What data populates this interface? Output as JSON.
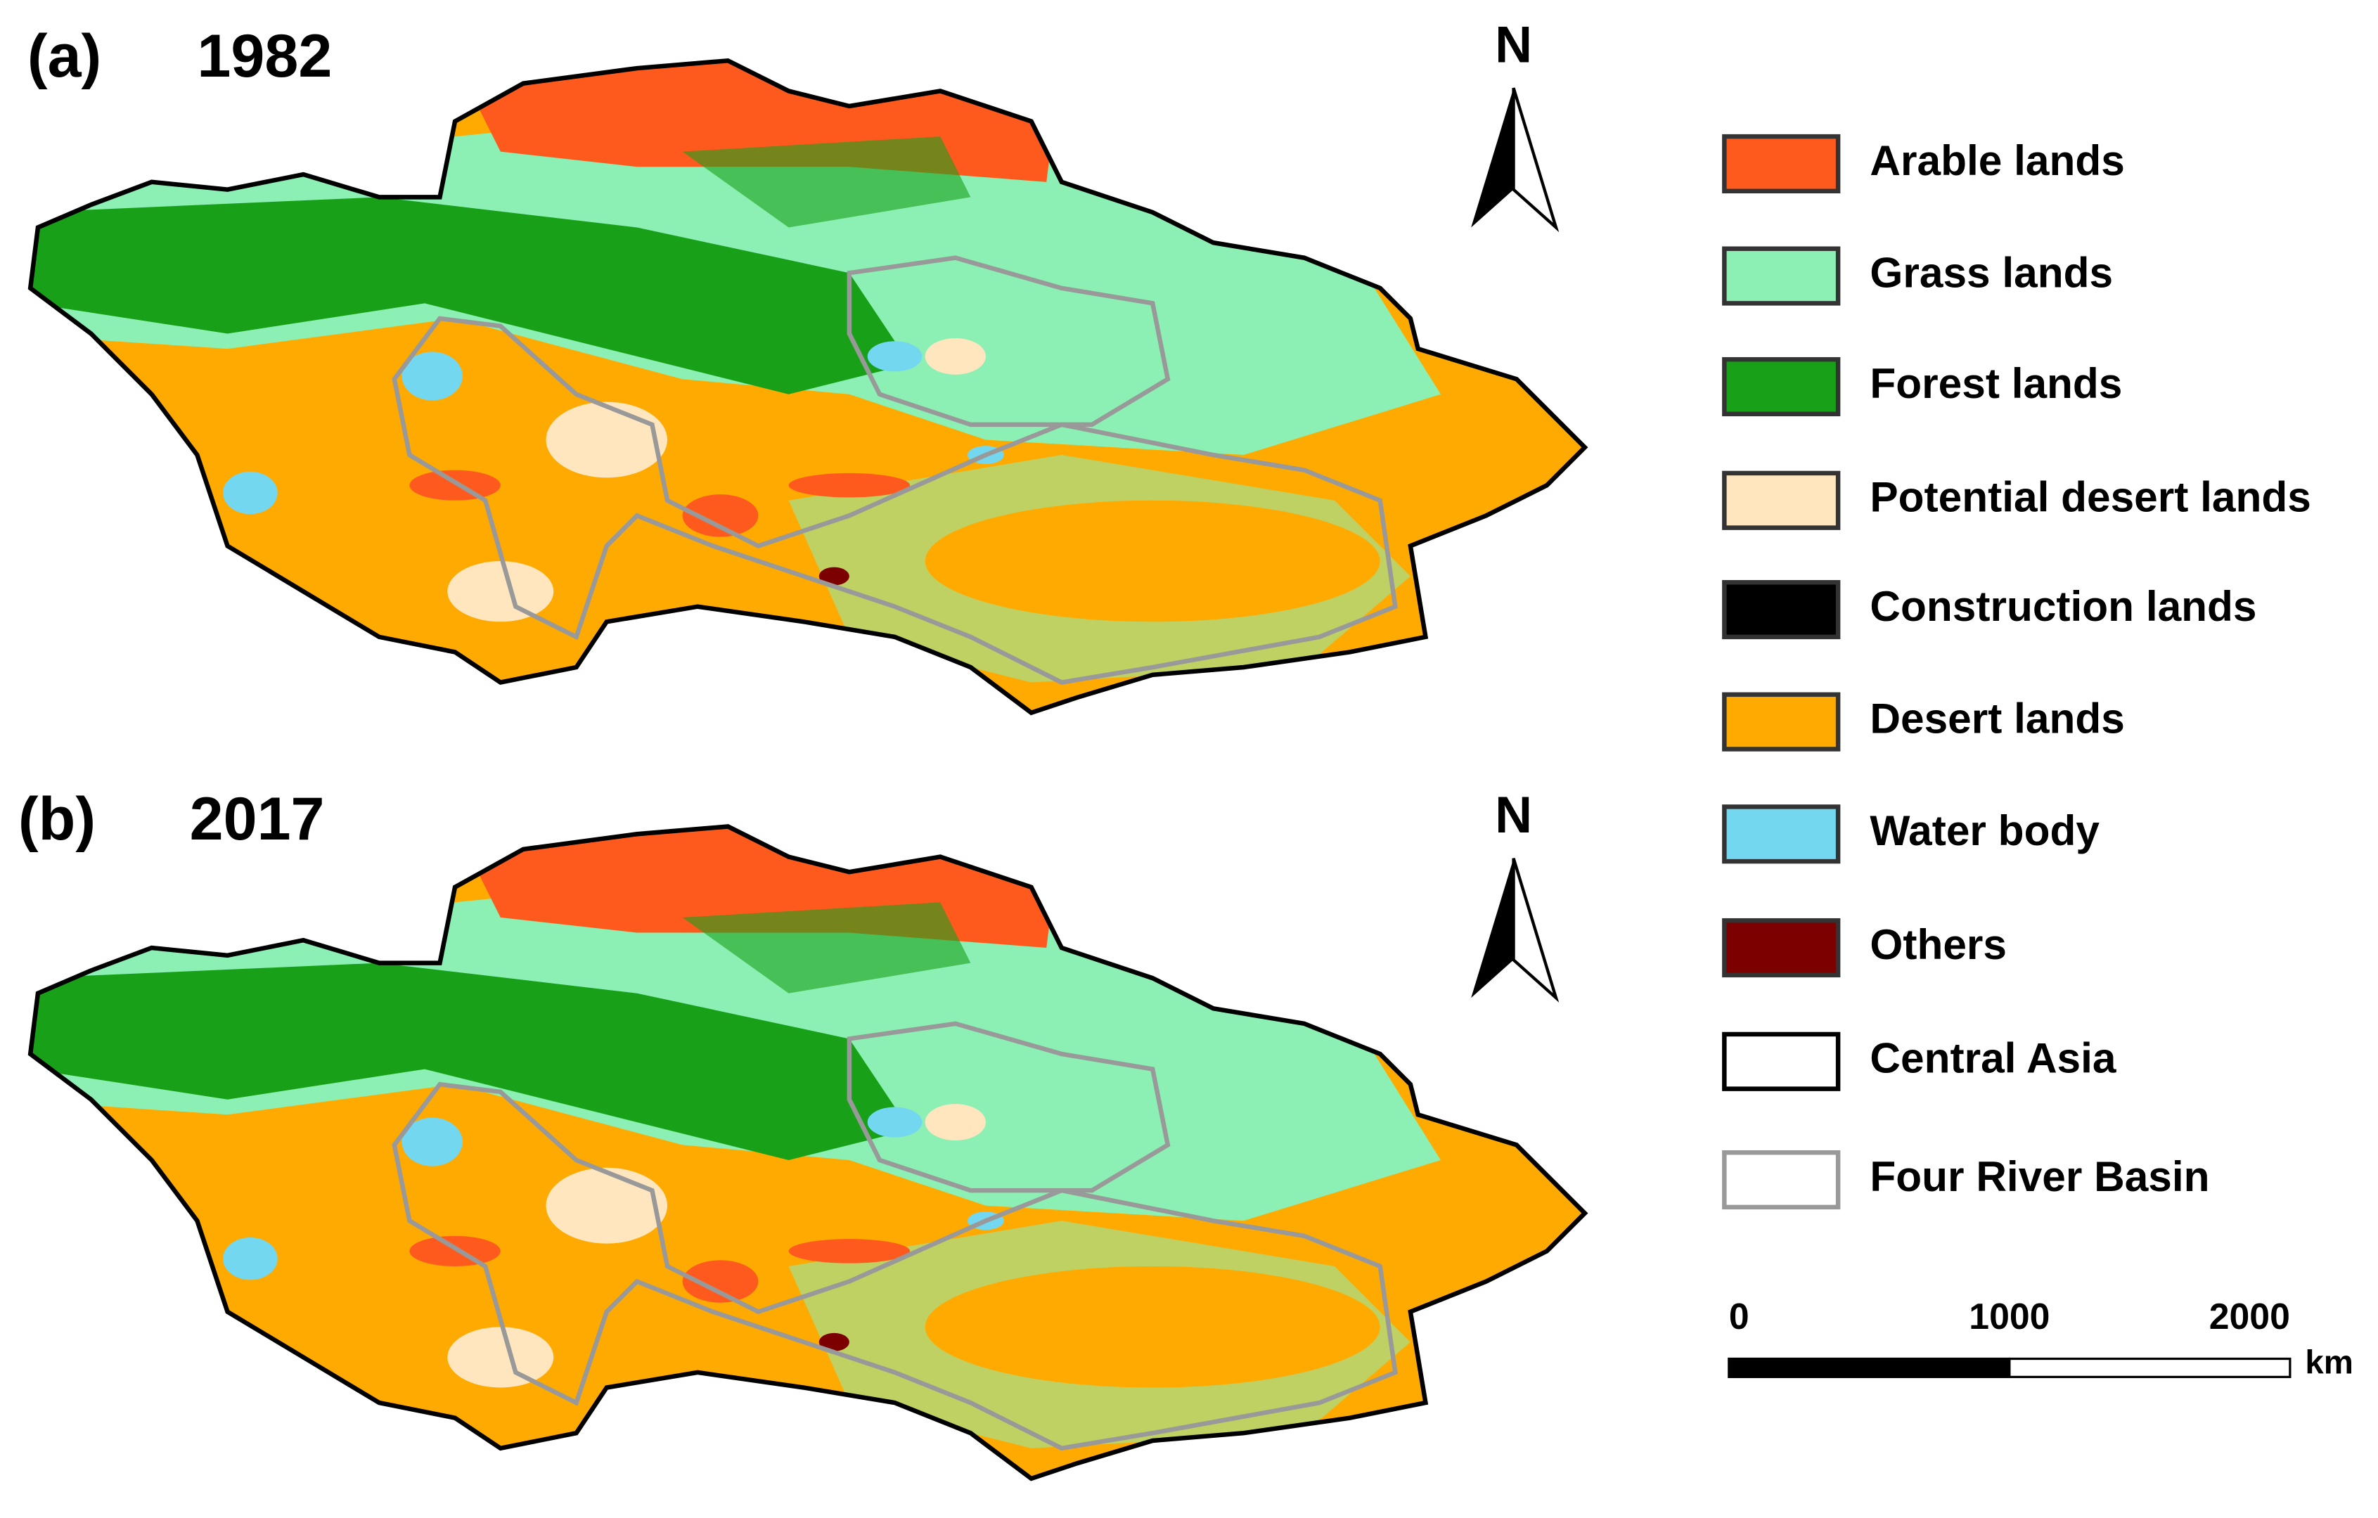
{
  "panels": [
    {
      "label": "(a)",
      "year": "1982",
      "north": "N"
    },
    {
      "label": "(b)",
      "year": "2017",
      "north": "N"
    }
  ],
  "legend": [
    {
      "label": "Arable lands",
      "color": "#ff5a1e",
      "border": "#333333"
    },
    {
      "label": "Grass lands",
      "color": "#8cf0b4",
      "border": "#333333"
    },
    {
      "label": "Forest lands",
      "color": "#19a019",
      "border": "#333333"
    },
    {
      "label": "Potential desert lands",
      "color": "#ffe6be",
      "border": "#333333"
    },
    {
      "label": "Construction lands",
      "color": "#000000",
      "border": "#333333"
    },
    {
      "label": "Desert lands",
      "color": "#ffaa00",
      "border": "#333333"
    },
    {
      "label": "Water body",
      "color": "#73d7f0",
      "border": "#333333"
    },
    {
      "label": "Others",
      "color": "#7d0000",
      "border": "#333333"
    },
    {
      "label": "Central Asia",
      "color": "#ffffff",
      "border": "#000000"
    },
    {
      "label": "Four River Basin",
      "color": "#ffffff",
      "border": "#999999"
    }
  ],
  "scale_bar": {
    "ticks": [
      0,
      1000,
      2000
    ],
    "unit": "km"
  }
}
